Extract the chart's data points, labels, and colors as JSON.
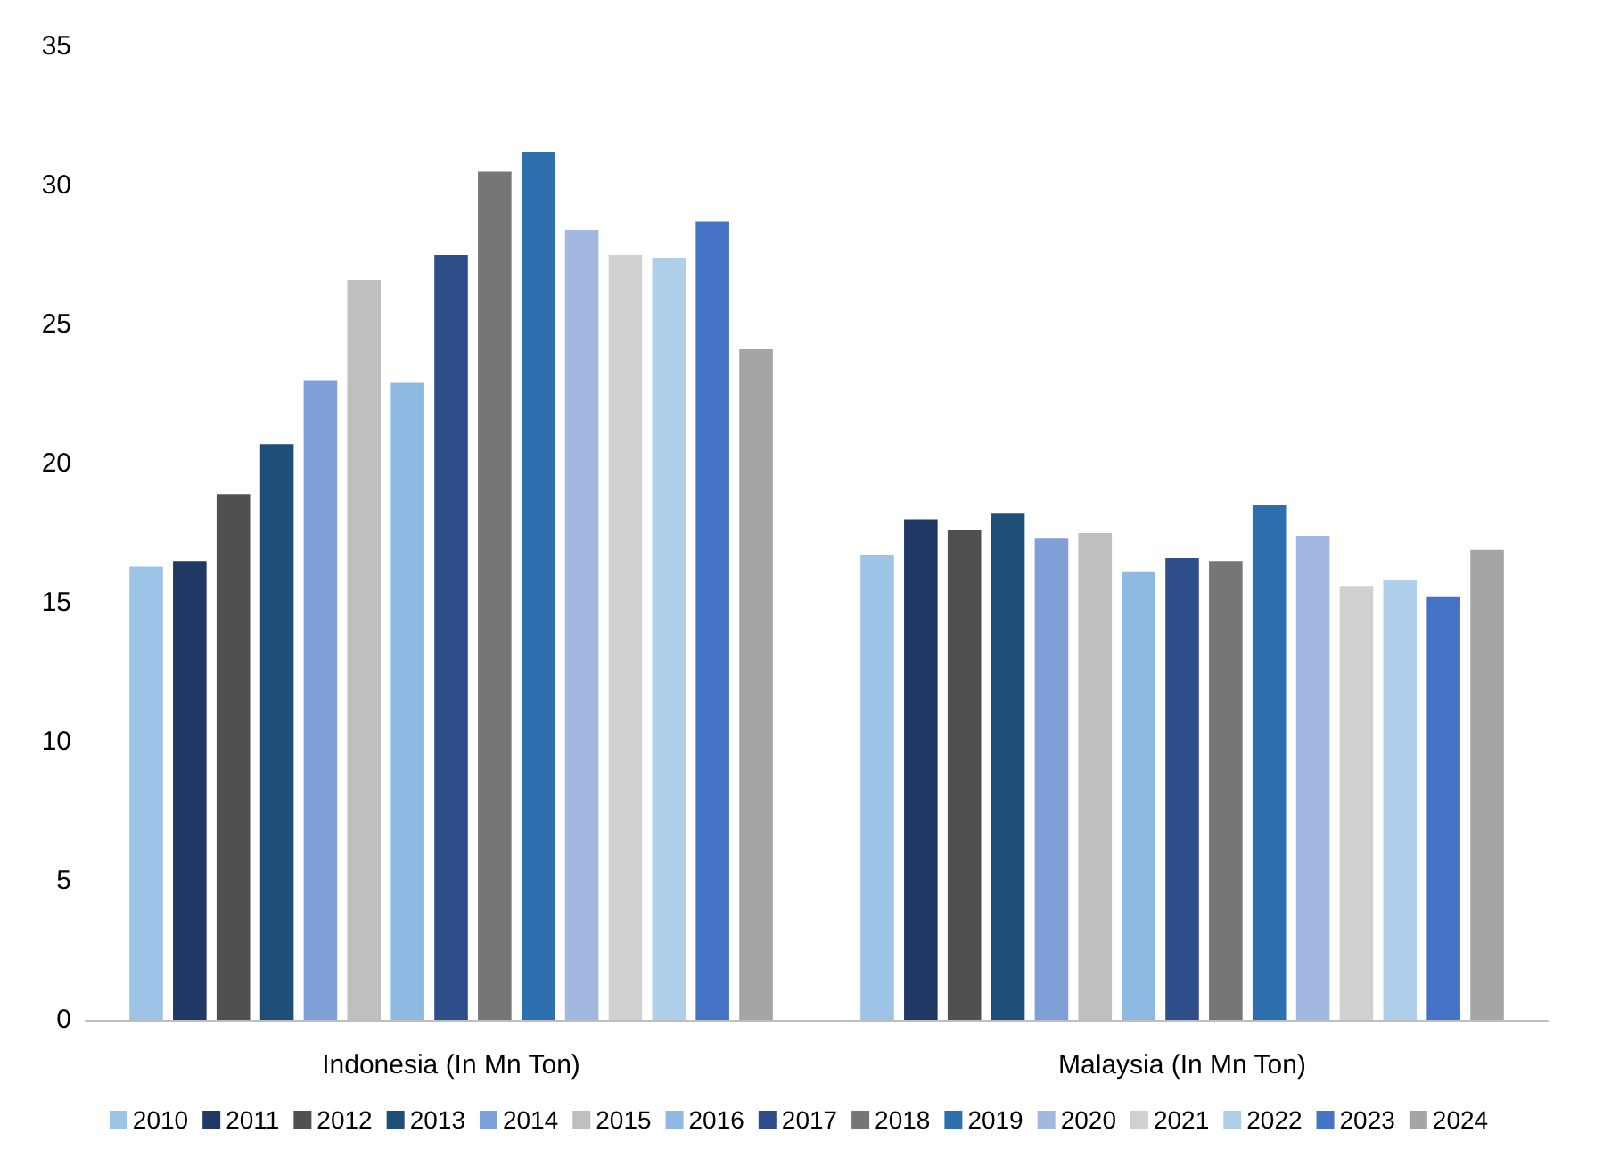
{
  "chart_data": {
    "type": "bar",
    "categories": [
      "Indonesia (In Mn Ton)",
      "Malaysia (In Mn Ton)"
    ],
    "series": [
      {
        "name": "2010",
        "color": "#9dc3e6",
        "values": [
          16.3,
          16.7
        ]
      },
      {
        "name": "2011",
        "color": "#1f3864",
        "values": [
          16.5,
          18.0
        ]
      },
      {
        "name": "2012",
        "color": "#505050",
        "values": [
          18.9,
          17.6
        ]
      },
      {
        "name": "2013",
        "color": "#1f4e79",
        "values": [
          20.7,
          18.2
        ]
      },
      {
        "name": "2014",
        "color": "#7f9fd8",
        "values": [
          23.0,
          17.3
        ]
      },
      {
        "name": "2015",
        "color": "#bfbfbf",
        "values": [
          26.6,
          17.5
        ]
      },
      {
        "name": "2016",
        "color": "#8db9e2",
        "values": [
          22.9,
          16.1
        ]
      },
      {
        "name": "2017",
        "color": "#2e4e8a",
        "values": [
          27.5,
          16.6
        ]
      },
      {
        "name": "2018",
        "color": "#767676",
        "values": [
          30.5,
          16.5
        ]
      },
      {
        "name": "2019",
        "color": "#2e6fad",
        "values": [
          31.2,
          18.5
        ]
      },
      {
        "name": "2020",
        "color": "#a3b8e0",
        "values": [
          28.4,
          17.4
        ]
      },
      {
        "name": "2021",
        "color": "#d0d0d0",
        "values": [
          27.5,
          15.6
        ]
      },
      {
        "name": "2022",
        "color": "#b0cfeb",
        "values": [
          27.4,
          15.8
        ]
      },
      {
        "name": "2023",
        "color": "#4472c4",
        "values": [
          28.7,
          15.2
        ]
      },
      {
        "name": "2024",
        "color": "#a5a5a5",
        "values": [
          24.1,
          16.9
        ]
      }
    ],
    "ylim": [
      0,
      35
    ],
    "yticks": [
      0,
      5,
      10,
      15,
      20,
      25,
      30,
      35
    ],
    "grid": false,
    "legend": "bottom"
  }
}
